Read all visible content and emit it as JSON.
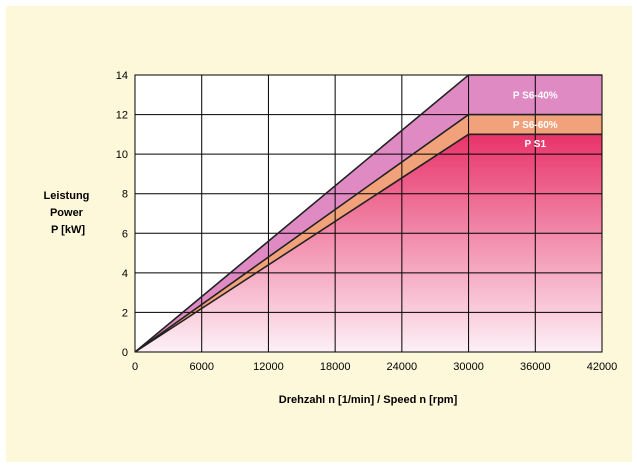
{
  "chart_data": {
    "type": "area",
    "ylabel_lines": [
      "Leistung",
      "Power",
      "P [kW]"
    ],
    "xlabel": "Drehzahl n [1/min] / Speed n [rpm]",
    "xlim": [
      0,
      42000
    ],
    "ylim": [
      0,
      14
    ],
    "x_ticks": [
      0,
      6000,
      12000,
      18000,
      24000,
      30000,
      36000,
      42000
    ],
    "y_ticks": [
      0,
      2,
      4,
      6,
      8,
      10,
      12,
      14
    ],
    "grid": true,
    "series": [
      {
        "name": "P S6-40%",
        "x": [
          0,
          30000,
          42000
        ],
        "y": [
          0,
          14,
          14
        ],
        "color": "#e08ac4"
      },
      {
        "name": "P S6-60%",
        "x": [
          0,
          30000,
          42000
        ],
        "y": [
          0,
          12,
          12
        ],
        "color": "#f2a27a"
      },
      {
        "name": "P S1",
        "x": [
          0,
          30000,
          42000
        ],
        "y": [
          0,
          11,
          11
        ],
        "color": "#e8336a"
      }
    ]
  }
}
